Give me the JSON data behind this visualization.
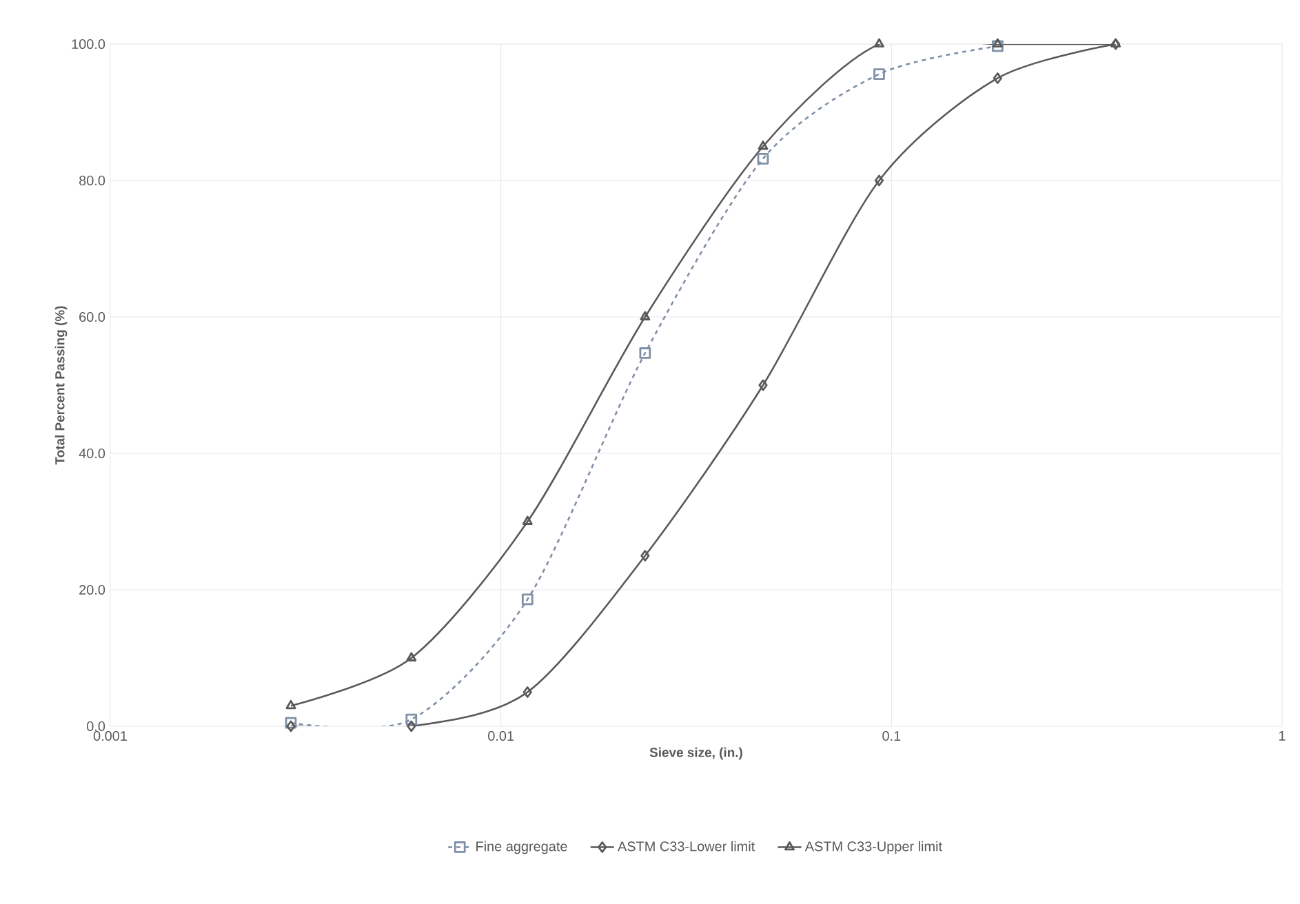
{
  "chart_data": {
    "type": "line",
    "xlabel": "Sieve size, (in.)",
    "ylabel": "Total Percent Passing (%)",
    "series": [
      {
        "name": "Fine aggregate",
        "color": "#7f8fa6",
        "marker": "square",
        "line_style": "dashed",
        "x": [
          0.0029,
          0.0059,
          0.0117,
          0.0234,
          0.0469,
          0.093,
          0.187
        ],
        "values": [
          0.5,
          1.0,
          18.6,
          54.7,
          83.2,
          95.6,
          99.7
        ]
      },
      {
        "name": "ASTM C33-Lower  limit",
        "color": "#595959",
        "marker": "diamond",
        "line_style": "solid",
        "x": [
          0.0029,
          0.0059,
          0.0117,
          0.0234,
          0.0469,
          0.093,
          0.187,
          0.375
        ],
        "values": [
          0,
          0,
          5,
          25,
          50,
          80,
          95,
          100
        ]
      },
      {
        "name": "ASTM C33-Upper limit",
        "color": "#595959",
        "marker": "triangle",
        "line_style": "solid",
        "x": [
          0.0029,
          0.0059,
          0.0117,
          0.0234,
          0.0469,
          0.093,
          0.187,
          0.375
        ],
        "values": [
          3,
          10,
          30,
          60,
          85,
          100,
          100,
          100
        ]
      }
    ],
    "log": "x",
    "xlim": [
      0.001,
      1
    ],
    "xticks": [
      0.001,
      0.01,
      0.1,
      1
    ],
    "ylim": [
      0,
      100
    ],
    "yticks": [
      {
        "value": 0,
        "label": "0.0"
      },
      {
        "value": 20,
        "label": "20.0"
      },
      {
        "value": 40,
        "label": "40.0"
      },
      {
        "value": 60,
        "label": "60.0"
      },
      {
        "value": 80,
        "label": "80.0"
      },
      {
        "value": 100,
        "label": "100.0"
      }
    ],
    "grid": true,
    "legend": "bottom"
  }
}
